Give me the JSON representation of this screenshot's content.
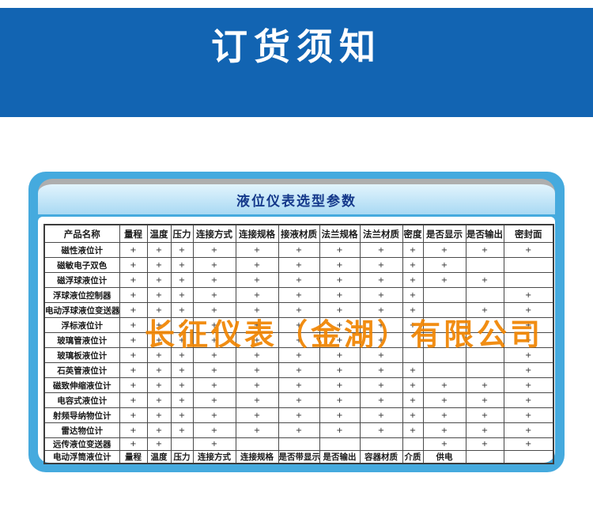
{
  "banner": {
    "title": "订货须知"
  },
  "card": {
    "title": "液位仪表选型参数",
    "watermark": "长征仪表（金湖）有限公司",
    "table": {
      "columns": [
        "产品名称",
        "量程",
        "温度",
        "压力",
        "连接方式",
        "连接规格",
        "接液材质",
        "法兰规格",
        "法兰材质",
        "密度",
        "是否显示",
        "是否输出",
        "密封面"
      ],
      "plus_mark": "+",
      "rows": [
        {
          "name": "磁性液位计",
          "cells": [
            "+",
            "+",
            "+",
            "+",
            "+",
            "+",
            "+",
            "+",
            "+",
            "+",
            "+",
            "+"
          ]
        },
        {
          "name": "磁敏电子双色",
          "cells": [
            "+",
            "+",
            "+",
            "+",
            "+",
            "+",
            "+",
            "+",
            "+",
            "+",
            "",
            ""
          ]
        },
        {
          "name": "磁浮球液位计",
          "cells": [
            "+",
            "+",
            "+",
            "+",
            "+",
            "+",
            "+",
            "+",
            "+",
            "+",
            "+",
            ""
          ]
        },
        {
          "name": "浮球液位控制器",
          "cells": [
            "+",
            "+",
            "+",
            "+",
            "+",
            "+",
            "+",
            "+",
            "+",
            "",
            "",
            "+"
          ]
        },
        {
          "name": "电动浮球液位变送器",
          "cells": [
            "+",
            "+",
            "+",
            "+",
            "+",
            "+",
            "+",
            "+",
            "+",
            "",
            "+",
            "+"
          ]
        },
        {
          "name": "浮标液位计",
          "cells": [
            "+",
            "+",
            "+",
            "+",
            "+",
            "+",
            "+",
            "+",
            "+",
            "",
            "",
            "+"
          ]
        },
        {
          "name": "玻璃管液位计",
          "cells": [
            "+",
            "+",
            "+",
            "+",
            "+",
            "+",
            "+",
            "+",
            "",
            "",
            "",
            "+"
          ]
        },
        {
          "name": "玻璃板液位计",
          "cells": [
            "+",
            "+",
            "+",
            "+",
            "+",
            "+",
            "+",
            "+",
            "",
            "",
            "",
            "+"
          ]
        },
        {
          "name": "石英管液位计",
          "cells": [
            "+",
            "+",
            "+",
            "+",
            "+",
            "+",
            "+",
            "+",
            "+",
            "",
            "",
            "+"
          ]
        },
        {
          "name": "磁致伸缩液位计",
          "cells": [
            "+",
            "+",
            "+",
            "+",
            "+",
            "+",
            "+",
            "+",
            "+",
            "+",
            "+",
            "+"
          ]
        },
        {
          "name": "电容式液位计",
          "cells": [
            "+",
            "+",
            "+",
            "+",
            "+",
            "+",
            "+",
            "+",
            "+",
            "+",
            "+",
            "+"
          ]
        },
        {
          "name": "射频导纳物位计",
          "cells": [
            "+",
            "+",
            "+",
            "+",
            "+",
            "+",
            "+",
            "+",
            "+",
            "+",
            "+",
            "+"
          ]
        },
        {
          "name": "雷达物位计",
          "cells": [
            "+",
            "+",
            "+",
            "+",
            "+",
            "+",
            "+",
            "+",
            "+",
            "+",
            "+",
            "+"
          ]
        },
        {
          "name": "远传液位变送器",
          "cells": [
            "+",
            "+",
            "",
            "+",
            "",
            "",
            "",
            "",
            "",
            "+",
            "+",
            "+"
          ]
        },
        {
          "name": "电动浮筒液位计",
          "cells": [
            "量程",
            "温度",
            "压力",
            "连接方式",
            "连接规格",
            "是否带显示",
            "是否输出",
            "容器材质",
            "介质",
            "供电",
            "",
            ""
          ],
          "is_label_row": true
        }
      ]
    }
  },
  "colors": {
    "banner_blue": "#1264b2",
    "card_frame_blue": "#45aade",
    "title_navy": "#15398b",
    "title_bar_gradient_top": "#e2f4fd",
    "title_bar_gradient_bottom": "#a9d9f3",
    "watermark_orange": "#f08400",
    "table_border": "#4a4a4a",
    "text": "#1a1a1a"
  }
}
